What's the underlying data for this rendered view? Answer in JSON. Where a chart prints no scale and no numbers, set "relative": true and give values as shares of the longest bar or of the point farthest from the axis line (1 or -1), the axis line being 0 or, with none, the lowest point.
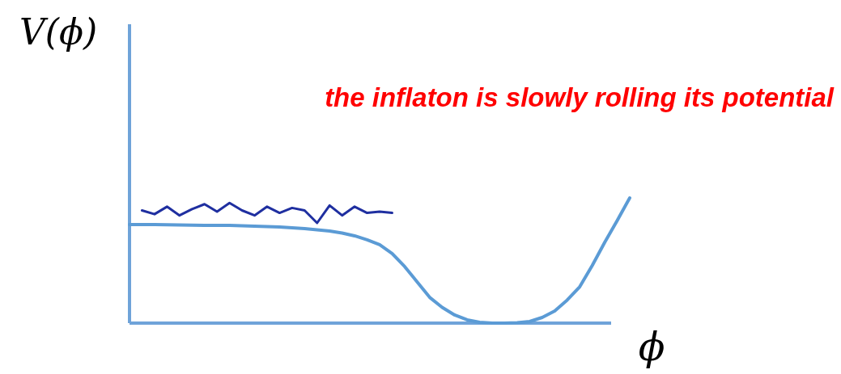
{
  "chart_data": {
    "type": "line",
    "relative": true,
    "xlabel": "ϕ",
    "ylabel": "V(ϕ)",
    "annotations": [
      "the inflaton is slowly rolling its potential"
    ],
    "marker": "none",
    "line_style": "solid",
    "categories": [
      null,
      null,
      null,
      null,
      null,
      null,
      null,
      null,
      null,
      null,
      null,
      null,
      null,
      null,
      null,
      null,
      null,
      null,
      null,
      null,
      null,
      null,
      null,
      null,
      null,
      null,
      null,
      null,
      null,
      null,
      null,
      null,
      null,
      null,
      null,
      null,
      null,
      null,
      null,
      null,
      null
    ],
    "series": [
      {
        "color": "#5b9bd5",
        "values": [
          0.787,
          0.787,
          0.787,
          0.785,
          0.784,
          0.782,
          0.781,
          0.781,
          0.781,
          0.778,
          0.774,
          0.771,
          0.768,
          0.761,
          0.755,
          0.745,
          0.735,
          0.719,
          0.697,
          0.665,
          0.626,
          0.555,
          0.452,
          0.329,
          0.206,
          0.126,
          0.065,
          0.026,
          0.006,
          0.0,
          0.0,
          0.003,
          0.013,
          0.045,
          0.097,
          0.184,
          0.29,
          0.46,
          0.645,
          0.82,
          1.0
        ]
      },
      {
        "color": "#1f2fa0",
        "values": [
          null,
          0.9,
          0.87,
          0.93,
          0.86,
          0.91,
          0.95,
          0.89,
          0.96,
          0.9,
          0.86,
          0.93,
          0.88,
          0.92,
          0.9,
          0.8,
          0.94,
          0.86,
          0.93,
          0.88,
          0.89,
          0.88,
          null,
          null,
          null,
          null,
          null,
          null,
          null,
          null,
          null,
          null,
          null,
          null,
          null,
          null,
          null,
          null,
          null,
          null,
          null
        ]
      }
    ]
  }
}
